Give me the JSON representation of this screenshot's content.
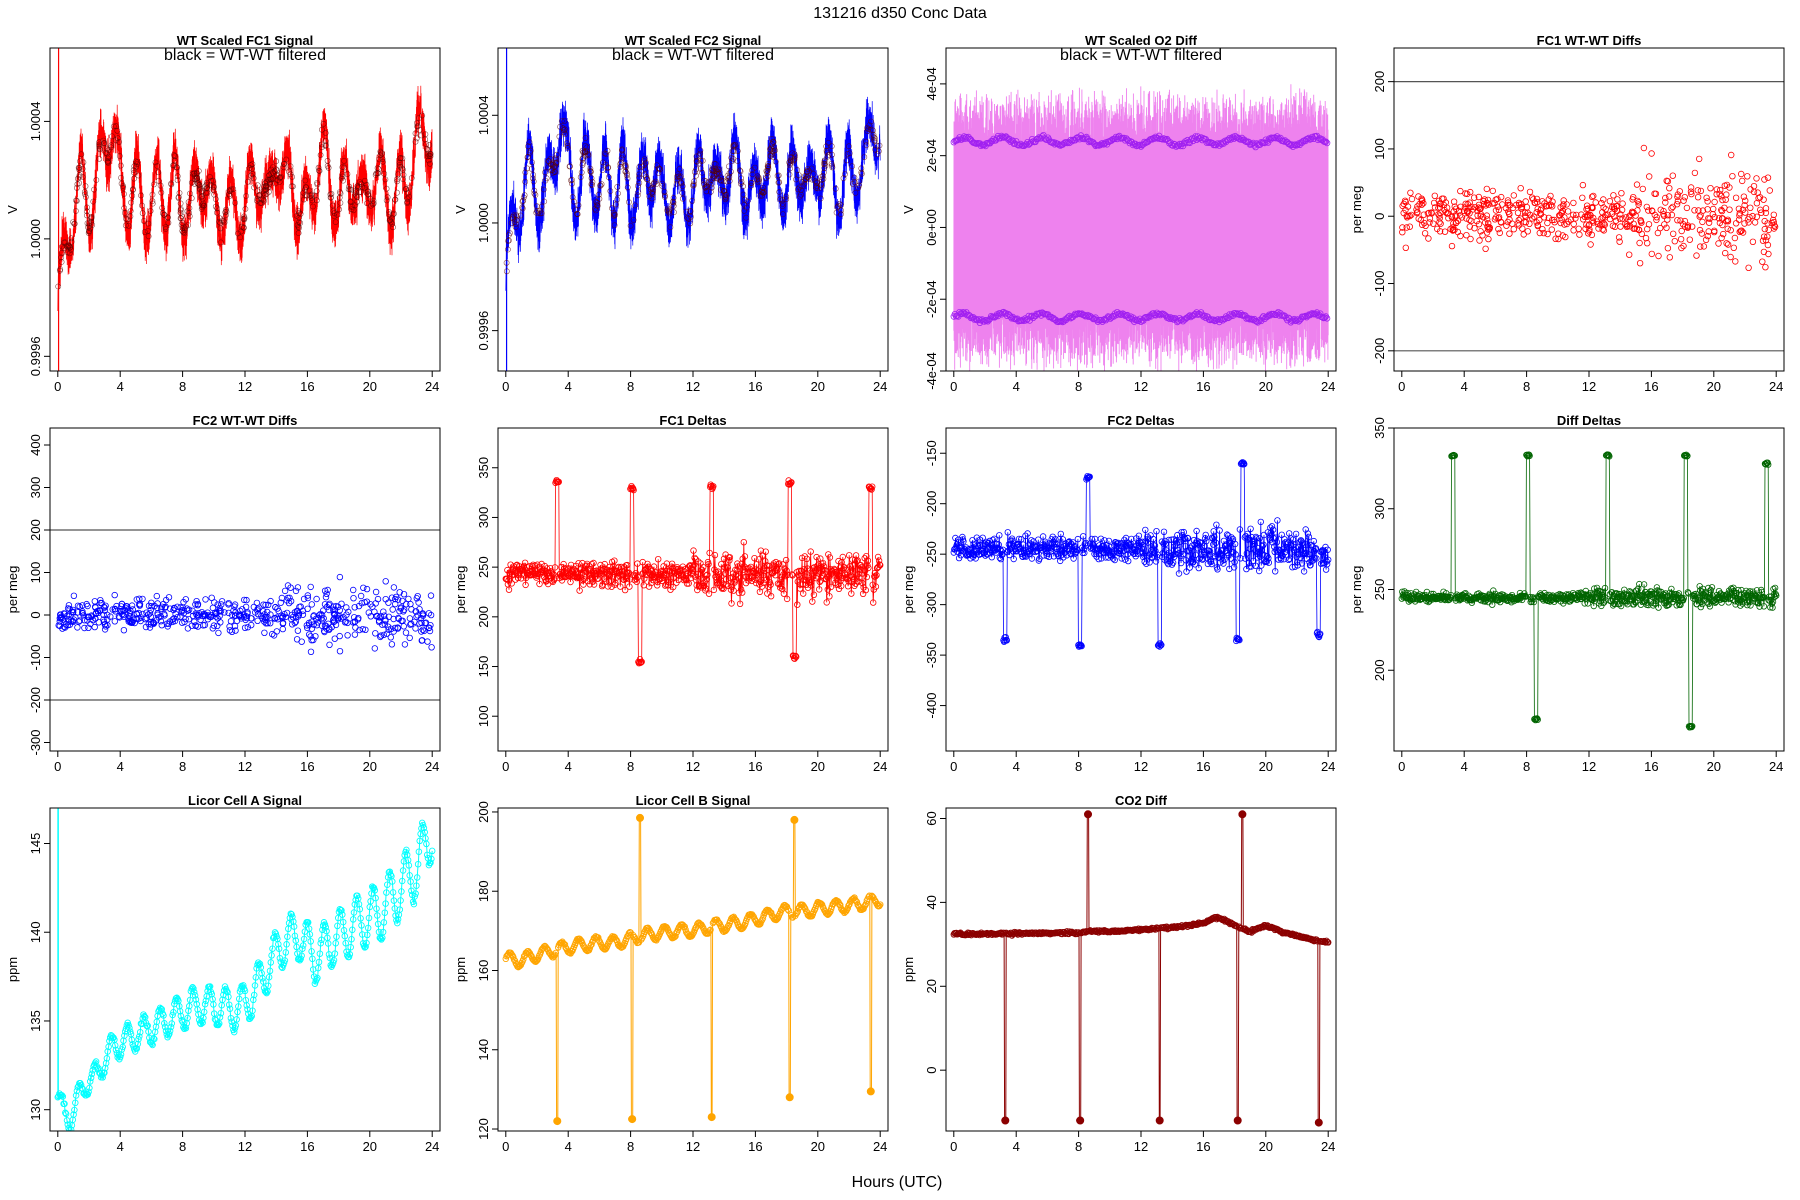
{
  "figure": {
    "title": "131216    d350    Conc Data",
    "xlabel": "Hours (UTC)"
  },
  "chart_data": [
    {
      "id": "p1",
      "type": "line",
      "title": "WT Scaled FC1 Signal",
      "annotation": "black = WT-WT filtered",
      "ylabel": "V",
      "color": "#ff0000",
      "xlim": [
        -0.5,
        24.5
      ],
      "ylim": [
        0.99955,
        1.00065
      ],
      "xticks": [
        0,
        4,
        8,
        12,
        16,
        20,
        24
      ],
      "yticks": [
        {
          "v": 0.9996,
          "label": "0.9996"
        },
        {
          "v": 1.0,
          "label": "1.0000"
        },
        {
          "v": 1.0004,
          "label": "1.0004"
        }
      ],
      "x": [
        0,
        0.5,
        1,
        1.5,
        2,
        2.5,
        3,
        3.5,
        4,
        4.5,
        5,
        5.5,
        6,
        6.5,
        7,
        7.5,
        8,
        8.5,
        9,
        9.5,
        10,
        10.5,
        11,
        11.5,
        12,
        12.5,
        13,
        13.5,
        14,
        14.5,
        15,
        15.5,
        16,
        16.5,
        17,
        17.5,
        18,
        18.5,
        19,
        19.5,
        20,
        20.5,
        21,
        21.5,
        22,
        22.5,
        23,
        23.5,
        24
      ],
      "y": [
        0.9998,
        0.99995,
        1.0001,
        1.0002,
        1.0001,
        1.0002,
        1.0003,
        1.0004,
        1.0002,
        1.0001,
        1.0002,
        1.0001,
        1.0001,
        1.0002,
        1.0001,
        1.0002,
        1.0001,
        1.0001,
        1.0002,
        1.0002,
        1.0001,
        1.0001,
        1.0001,
        1.0001,
        1.0001,
        1.0002,
        1.0002,
        1.0001,
        1.0003,
        1.0002,
        1.0002,
        1.0001,
        1.0001,
        1.0002,
        1.0003,
        1.0002,
        1.0001,
        1.0002,
        1.0002,
        1.0001,
        1.0002,
        1.0002,
        1.0002,
        1.0001,
        1.0002,
        1.0002,
        1.0003,
        1.0004,
        1.0003
      ],
      "band": 0.00012,
      "overlay": "black"
    },
    {
      "id": "p2",
      "type": "line",
      "title": "WT Scaled FC2 Signal",
      "annotation": "black = WT-WT filtered",
      "ylabel": "V",
      "color": "#0000ff",
      "xlim": [
        -0.5,
        24.5
      ],
      "ylim": [
        0.99945,
        1.00065
      ],
      "xticks": [
        0,
        4,
        8,
        12,
        16,
        20,
        24
      ],
      "yticks": [
        {
          "v": 0.9996,
          "label": "0.9996"
        },
        {
          "v": 1.0,
          "label": "1.0000"
        },
        {
          "v": 1.0004,
          "label": "1.0004"
        }
      ],
      "x": [
        0,
        0.5,
        1,
        1.5,
        2,
        2.5,
        3,
        3.5,
        4,
        4.5,
        5,
        5.5,
        6,
        6.5,
        7,
        7.5,
        8,
        8.5,
        9,
        9.5,
        10,
        10.5,
        11,
        11.5,
        12,
        12.5,
        13,
        13.5,
        14,
        14.5,
        15,
        15.5,
        16,
        16.5,
        17,
        17.5,
        18,
        18.5,
        19,
        19.5,
        20,
        20.5,
        21,
        21.5,
        22,
        22.5,
        23,
        23.5,
        24
      ],
      "y": [
        0.9998,
        1.0,
        1.0001,
        1.0002,
        1.0001,
        1.0001,
        1.0002,
        1.0004,
        1.0002,
        1.0001,
        1.0002,
        1.0002,
        1.0001,
        1.0002,
        1.0001,
        1.0002,
        1.0001,
        1.0001,
        1.0002,
        1.0002,
        1.0001,
        1.0001,
        1.0001,
        1.0001,
        1.0001,
        1.0002,
        1.0002,
        1.0001,
        1.0002,
        1.0002,
        1.0002,
        1.0001,
        1.0001,
        1.0002,
        1.0002,
        1.0002,
        1.0001,
        1.0002,
        1.0002,
        1.0001,
        1.0002,
        1.0002,
        1.0002,
        1.0001,
        1.0002,
        1.0002,
        1.0002,
        1.0004,
        1.0003
      ],
      "band": 0.00013,
      "overlay": "black"
    },
    {
      "id": "p3",
      "type": "line",
      "title": "WT Scaled O2 Diff",
      "annotation": "black = WT-WT filtered",
      "ylabel": "V",
      "color": "#ee82ee",
      "point_color": "#a020f0",
      "xlim": [
        -0.5,
        24.5
      ],
      "ylim": [
        -0.0004,
        0.0005
      ],
      "xticks": [
        0,
        4,
        8,
        12,
        16,
        20,
        24
      ],
      "yticks": [
        {
          "v": -0.0004,
          "label": "-4e-04"
        },
        {
          "v": -0.0002,
          "label": "-2e-04"
        },
        {
          "v": 0,
          "label": "0e+00"
        },
        {
          "v": 0.0002,
          "label": "2e-04"
        },
        {
          "v": 0.0004,
          "label": "4e-04"
        }
      ],
      "upper": 0.00024,
      "lower": -0.00025,
      "band": 0.00033
    },
    {
      "id": "p4",
      "type": "scatter",
      "title": "FC1 WT-WT Diffs",
      "ylabel": "per meg",
      "color": "#ff0000",
      "xlim": [
        -0.5,
        24.5
      ],
      "ylim": [
        -230,
        250
      ],
      "xticks": [
        0,
        4,
        8,
        12,
        16,
        20,
        24
      ],
      "yticks": [
        {
          "v": -200,
          "label": "-200"
        },
        {
          "v": -100,
          "label": "-100"
        },
        {
          "v": 0,
          "label": "0"
        },
        {
          "v": 100,
          "label": "100"
        },
        {
          "v": 200,
          "label": "200"
        }
      ],
      "hlines": [
        200,
        -200
      ],
      "spread": 40
    },
    {
      "id": "p5",
      "type": "scatter",
      "title": "FC2 WT-WT Diffs",
      "ylabel": "per meg",
      "color": "#0000ff",
      "xlim": [
        -0.5,
        24.5
      ],
      "ylim": [
        -320,
        440
      ],
      "xticks": [
        0,
        4,
        8,
        12,
        16,
        20,
        24
      ],
      "yticks": [
        {
          "v": -300,
          "label": "-300"
        },
        {
          "v": -200,
          "label": "-200"
        },
        {
          "v": -100,
          "label": "-100"
        },
        {
          "v": 0,
          "label": "0"
        },
        {
          "v": 100,
          "label": "100"
        },
        {
          "v": 200,
          "label": "200"
        },
        {
          "v": 300,
          "label": "300"
        },
        {
          "v": 400,
          "label": "400"
        }
      ],
      "hlines": [
        200,
        -200
      ],
      "spread": 40
    },
    {
      "id": "p6",
      "type": "line",
      "title": "FC1 Deltas",
      "ylabel": "per meg",
      "color": "#ff0000",
      "xlim": [
        -0.5,
        24.5
      ],
      "ylim": [
        65,
        390
      ],
      "xticks": [
        0,
        4,
        8,
        12,
        16,
        20,
        24
      ],
      "yticks": [
        {
          "v": 100,
          "label": "100"
        },
        {
          "v": 150,
          "label": "150"
        },
        {
          "v": 200,
          "label": "200"
        },
        {
          "v": 250,
          "label": "250"
        },
        {
          "v": 300,
          "label": "300"
        },
        {
          "v": 350,
          "label": "350"
        }
      ],
      "baseline": 243,
      "noise": 15,
      "spikes": [
        {
          "x": 3.3,
          "y": 335
        },
        {
          "x": 8.1,
          "y": 330
        },
        {
          "x": 8.6,
          "y": 155
        },
        {
          "x": 13.2,
          "y": 330
        },
        {
          "x": 18.2,
          "y": 335
        },
        {
          "x": 18.5,
          "y": 160
        },
        {
          "x": 23.4,
          "y": 330
        }
      ]
    },
    {
      "id": "p7",
      "type": "line",
      "title": "FC2 Deltas",
      "ylabel": "per meg",
      "color": "#0000ff",
      "xlim": [
        -0.5,
        24.5
      ],
      "ylim": [
        -445,
        -125
      ],
      "xticks": [
        0,
        4,
        8,
        12,
        16,
        20,
        24
      ],
      "yticks": [
        {
          "v": -400,
          "label": "-400"
        },
        {
          "v": -350,
          "label": "-350"
        },
        {
          "v": -300,
          "label": "-300"
        },
        {
          "v": -250,
          "label": "-250"
        },
        {
          "v": -200,
          "label": "-200"
        },
        {
          "v": -150,
          "label": "-150"
        }
      ],
      "baseline": -245,
      "noise": 14,
      "spikes": [
        {
          "x": 3.3,
          "y": -335
        },
        {
          "x": 8.1,
          "y": -340
        },
        {
          "x": 8.6,
          "y": -175
        },
        {
          "x": 13.2,
          "y": -340
        },
        {
          "x": 18.2,
          "y": -335
        },
        {
          "x": 18.5,
          "y": -160
        },
        {
          "x": 23.4,
          "y": -330
        }
      ]
    },
    {
      "id": "p8",
      "type": "line",
      "title": "Diff Deltas",
      "ylabel": "per meg",
      "color": "#006400",
      "xlim": [
        -0.5,
        24.5
      ],
      "ylim": [
        150,
        350
      ],
      "xticks": [
        0,
        4,
        8,
        12,
        16,
        20,
        24
      ],
      "yticks": [
        {
          "v": 200,
          "label": "200"
        },
        {
          "v": 250,
          "label": "250"
        },
        {
          "v": 300,
          "label": "300"
        },
        {
          "v": 350,
          "label": "350"
        }
      ],
      "baseline": 245,
      "noise": 4,
      "spikes": [
        {
          "x": 3.3,
          "y": 333
        },
        {
          "x": 8.1,
          "y": 333
        },
        {
          "x": 8.6,
          "y": 170
        },
        {
          "x": 13.2,
          "y": 333
        },
        {
          "x": 18.2,
          "y": 333
        },
        {
          "x": 18.5,
          "y": 165
        },
        {
          "x": 23.4,
          "y": 328
        }
      ]
    },
    {
      "id": "p9",
      "type": "line",
      "title": "Licor Cell A Signal",
      "ylabel": "ppm",
      "color": "#00ffff",
      "xlim": [
        -0.5,
        24.5
      ],
      "ylim": [
        128.8,
        147
      ],
      "xticks": [
        0,
        4,
        8,
        12,
        16,
        20,
        24
      ],
      "yticks": [
        {
          "v": 130,
          "label": "130"
        },
        {
          "v": 135,
          "label": "135"
        },
        {
          "v": 140,
          "label": "140"
        },
        {
          "v": 145,
          "label": "145"
        }
      ],
      "x": [
        0,
        0.8,
        1.5,
        2.5,
        3.5,
        4.5,
        5.5,
        6.5,
        7.5,
        8.5,
        9.5,
        10.5,
        11.5,
        12.5,
        13.5,
        14.5,
        15.5,
        16.5,
        17.5,
        18.5,
        19.5,
        20.5,
        21.5,
        22.5,
        23.5,
        24
      ],
      "y": [
        130.6,
        129.3,
        131.2,
        132.0,
        133.5,
        134.0,
        134.4,
        134.8,
        135.3,
        135.8,
        135.9,
        135.8,
        135.6,
        136.5,
        138.0,
        139.5,
        139.8,
        138.5,
        139.5,
        140.0,
        140.7,
        141.0,
        142.0,
        143.0,
        144.5,
        146.0
      ]
    },
    {
      "id": "p10",
      "type": "line",
      "title": "Licor Cell B Signal",
      "ylabel": "ppm",
      "color": "#ffa500",
      "xlim": [
        -0.5,
        24.5
      ],
      "ylim": [
        119.5,
        201
      ],
      "xticks": [
        0,
        4,
        8,
        12,
        16,
        20,
        24
      ],
      "yticks": [
        {
          "v": 120,
          "label": "120"
        },
        {
          "v": 140,
          "label": "140"
        },
        {
          "v": 160,
          "label": "160"
        },
        {
          "v": 180,
          "label": "180"
        },
        {
          "v": 200,
          "label": "200"
        }
      ],
      "x": [
        0,
        1,
        2,
        3,
        4,
        5,
        6,
        7,
        8,
        9,
        10,
        11,
        12,
        13,
        14,
        15,
        16,
        17,
        18,
        19,
        20,
        21,
        22,
        23,
        24
      ],
      "y": [
        163,
        162.5,
        164,
        165,
        166,
        166.5,
        167,
        167,
        168,
        169,
        169.5,
        170,
        170,
        171,
        171.5,
        172,
        173,
        174,
        175,
        175,
        175.5,
        176,
        176.5,
        177,
        178
      ],
      "spikes": [
        {
          "x": 3.3,
          "y": 122
        },
        {
          "x": 8.1,
          "y": 122.5
        },
        {
          "x": 8.6,
          "y": 198.5
        },
        {
          "x": 13.2,
          "y": 123
        },
        {
          "x": 18.2,
          "y": 128
        },
        {
          "x": 18.5,
          "y": 198
        },
        {
          "x": 23.4,
          "y": 129.5
        }
      ]
    },
    {
      "id": "p11",
      "type": "line",
      "title": "CO2 Diff",
      "ylabel": "ppm",
      "color": "#8b0000",
      "xlim": [
        -0.5,
        24.5
      ],
      "ylim": [
        -14.5,
        62.5
      ],
      "xticks": [
        0,
        4,
        8,
        12,
        16,
        20,
        24
      ],
      "yticks": [
        {
          "v": 0,
          "label": "0"
        },
        {
          "v": 20,
          "label": "20"
        },
        {
          "v": 40,
          "label": "40"
        },
        {
          "v": 60,
          "label": "60"
        }
      ],
      "x": [
        0,
        2,
        4,
        6,
        8,
        9,
        10,
        12,
        14,
        16,
        16.8,
        17.5,
        18,
        19,
        20,
        21,
        22,
        23,
        24
      ],
      "y": [
        32.5,
        32.5,
        32.6,
        32.7,
        32.8,
        33.2,
        33.0,
        33.5,
        34.0,
        35.0,
        36.5,
        35.5,
        34.5,
        33.0,
        34.5,
        33.0,
        32.0,
        31.0,
        30.5
      ],
      "spikes": [
        {
          "x": 3.3,
          "y": -12
        },
        {
          "x": 8.1,
          "y": -12
        },
        {
          "x": 8.6,
          "y": 61
        },
        {
          "x": 13.2,
          "y": -12
        },
        {
          "x": 18.2,
          "y": -12
        },
        {
          "x": 18.5,
          "y": 61
        },
        {
          "x": 23.4,
          "y": -12.5
        }
      ]
    }
  ]
}
